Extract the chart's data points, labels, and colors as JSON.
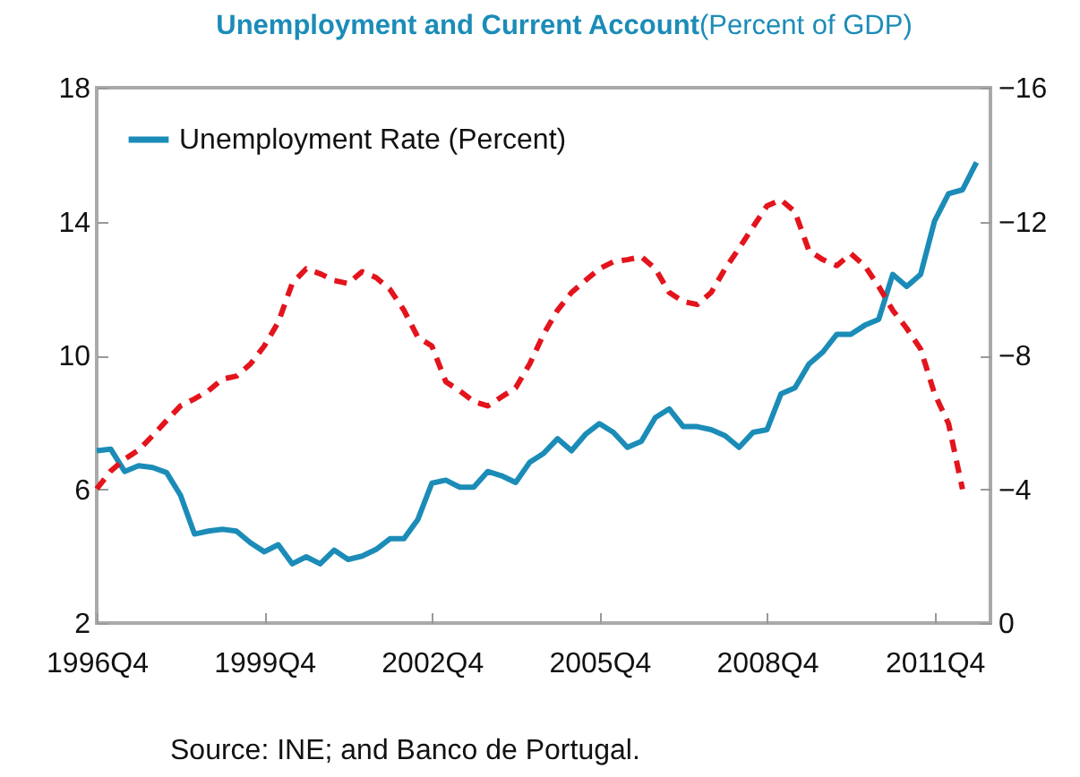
{
  "chart_data": {
    "type": "line",
    "title": "Unemployment and Current Account",
    "subtitle": "(Percent of GDP)",
    "categories": [
      "1996Q4",
      null,
      null,
      null,
      null,
      null,
      null,
      null,
      null,
      null,
      null,
      null,
      "1999Q4",
      null,
      null,
      null,
      null,
      null,
      null,
      null,
      null,
      null,
      null,
      null,
      "2002Q4",
      null,
      null,
      null,
      null,
      null,
      null,
      null,
      null,
      null,
      null,
      null,
      "2005Q4",
      null,
      null,
      null,
      null,
      null,
      null,
      null,
      null,
      null,
      null,
      null,
      "2008Q4",
      null,
      null,
      null,
      null,
      null,
      null,
      null,
      null,
      null,
      null,
      null,
      "2011Q4",
      null,
      null,
      null,
      null
    ],
    "series": [
      {
        "name": "Unemployment Rate (Percent)",
        "color": "#1b8cb7",
        "line_style": "solid",
        "values": [
          7.15,
          7.2,
          6.53,
          6.7,
          6.65,
          6.5,
          5.82,
          4.66,
          4.75,
          4.8,
          4.75,
          4.4,
          4.13,
          4.34,
          3.77,
          3.98,
          3.77,
          4.18,
          3.9,
          4.0,
          4.2,
          4.52,
          4.52,
          5.1,
          6.18,
          6.27,
          6.06,
          6.06,
          6.53,
          6.4,
          6.2,
          6.8,
          7.07,
          7.51,
          7.15,
          7.64,
          7.96,
          7.7,
          7.25,
          7.43,
          8.14,
          8.4,
          7.87,
          7.87,
          7.78,
          7.6,
          7.25,
          7.7,
          7.78,
          8.85,
          9.03,
          9.74,
          10.1,
          10.63,
          10.63,
          10.9,
          11.08,
          12.42,
          12.06,
          12.42,
          14.02,
          14.83,
          14.95,
          15.77,
          null
        ]
      },
      {
        "color": "#e3141c",
        "axis": "y2",
        "line_style": "dashed",
        "values": [
          -4.01,
          -4.54,
          -4.9,
          -5.17,
          -5.6,
          -6.05,
          -6.49,
          -6.7,
          -6.94,
          -7.29,
          -7.38,
          -7.74,
          -8.28,
          -8.99,
          -10.15,
          -10.59,
          -10.44,
          -10.24,
          -10.15,
          -10.5,
          -10.33,
          -9.97,
          -9.35,
          -8.54,
          -8.28,
          -7.21,
          -6.94,
          -6.62,
          -6.49,
          -6.76,
          -7.03,
          -7.74,
          -8.63,
          -9.35,
          -9.88,
          -10.24,
          -10.59,
          -10.8,
          -10.86,
          -10.95,
          -10.59,
          -9.88,
          -9.61,
          -9.52,
          -9.88,
          -10.59,
          -11.2,
          -11.84,
          -12.47,
          -12.65,
          -12.29,
          -11.13,
          -10.86,
          -10.68,
          -11.04,
          -10.68,
          -10.06,
          -9.35,
          -8.81,
          -8.19,
          -6.85,
          -5.96,
          -4.0,
          null,
          null
        ]
      }
    ],
    "ylim": [
      2,
      18
    ],
    "yticks": [
      2,
      6,
      10,
      14,
      18
    ],
    "y2lim": [
      0,
      -16
    ],
    "y2ticks": [
      0,
      -4,
      -8,
      -12,
      -16
    ],
    "grid": false,
    "legend": "top left",
    "marker": "none",
    "annotations": [
      "Source: INE; and Banco de Portugal."
    ]
  }
}
